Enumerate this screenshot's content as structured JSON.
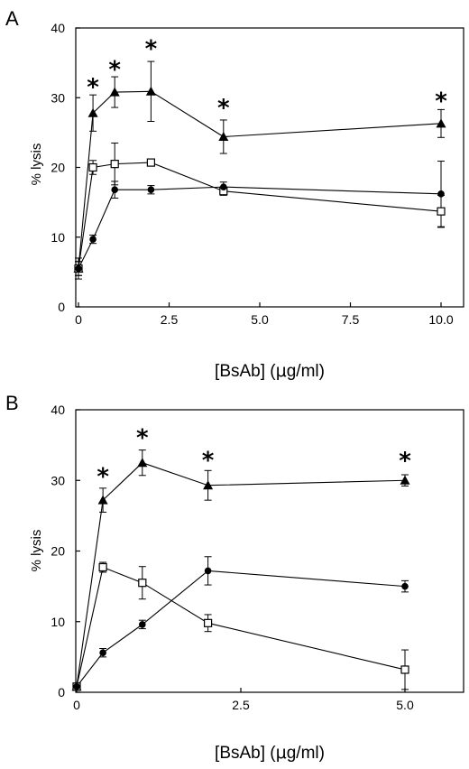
{
  "chart_data": [
    {
      "type": "line",
      "panel": "A",
      "ylabel": "% lysis",
      "xlabel_prefix": "[BsAb] (",
      "xlabel_mu": "μ",
      "xlabel_suffix": "g/ml)",
      "xlim": [
        0,
        11
      ],
      "ylim": [
        0,
        40
      ],
      "xticks": [
        0,
        2.5,
        5.0,
        7.5,
        10.0
      ],
      "xtick_labels": [
        "0",
        "2.5",
        "5.0",
        "7.5",
        "10.0"
      ],
      "yticks": [
        0,
        10,
        20,
        30,
        40
      ],
      "ytick_labels": [
        "0",
        "10",
        "20",
        "30",
        "40"
      ],
      "grid": false,
      "series": [
        {
          "marker": "filled-triangle",
          "points": [
            {
              "x": 0,
              "y": 5.5,
              "err": 1.0
            },
            {
              "x": 0.4,
              "y": 27.8,
              "err": 2.6
            },
            {
              "x": 1,
              "y": 30.8,
              "err": 2.2
            },
            {
              "x": 2,
              "y": 30.9,
              "err": 4.3
            },
            {
              "x": 4,
              "y": 24.4,
              "err": 2.4
            },
            {
              "x": 10,
              "y": 26.3,
              "err": 2.0
            }
          ]
        },
        {
          "marker": "open-square",
          "points": [
            {
              "x": 0,
              "y": 5.5,
              "err": 1.5
            },
            {
              "x": 0.4,
              "y": 20.0,
              "err": 1.0
            },
            {
              "x": 1,
              "y": 20.5,
              "err": 3.0
            },
            {
              "x": 2,
              "y": 20.7,
              "err": 0.3
            },
            {
              "x": 4,
              "y": 16.6,
              "err": 0.6
            },
            {
              "x": 10,
              "y": 13.7,
              "err": 2.3
            }
          ]
        },
        {
          "marker": "filled-circle",
          "points": [
            {
              "x": 0,
              "y": 5.5,
              "err": 1.0
            },
            {
              "x": 0.4,
              "y": 9.7,
              "err": 0.6
            },
            {
              "x": 1,
              "y": 16.8,
              "err": 1.2
            },
            {
              "x": 2,
              "y": 16.8,
              "err": 0.6
            },
            {
              "x": 4,
              "y": 17.2,
              "err": 0.7
            },
            {
              "x": 10,
              "y": 16.2,
              "err": 4.7
            }
          ]
        }
      ],
      "significance": [
        {
          "x": 0.4,
          "y": 32.0,
          "label": "*"
        },
        {
          "x": 1,
          "y": 34.5,
          "label": "*"
        },
        {
          "x": 2,
          "y": 37.5,
          "label": "*"
        },
        {
          "x": 4,
          "y": 29.0,
          "label": "*"
        },
        {
          "x": 10,
          "y": 30.0,
          "label": "*"
        }
      ]
    },
    {
      "type": "line",
      "panel": "B",
      "ylabel": "% lysis",
      "xlabel_prefix": "[BsAb] (",
      "xlabel_mu": "μ",
      "xlabel_suffix": "g/ml)",
      "xlim": [
        0,
        6
      ],
      "ylim": [
        0,
        40
      ],
      "xticks": [
        0,
        2.5,
        5.0
      ],
      "xtick_labels": [
        "0",
        "2.5",
        "5.0"
      ],
      "yticks": [
        0,
        10,
        20,
        30,
        40
      ],
      "ytick_labels": [
        "0",
        "10",
        "20",
        "30",
        "40"
      ],
      "grid": false,
      "series": [
        {
          "marker": "filled-triangle",
          "points": [
            {
              "x": 0,
              "y": 0.8,
              "err": 0.3
            },
            {
              "x": 0.4,
              "y": 27.2,
              "err": 1.7
            },
            {
              "x": 1,
              "y": 32.5,
              "err": 1.8
            },
            {
              "x": 2,
              "y": 29.3,
              "err": 2.1
            },
            {
              "x": 5,
              "y": 30.0,
              "err": 0.8
            }
          ]
        },
        {
          "marker": "open-square",
          "points": [
            {
              "x": 0,
              "y": 0.8,
              "err": 0.3
            },
            {
              "x": 0.4,
              "y": 17.7,
              "err": 0.7
            },
            {
              "x": 1,
              "y": 15.5,
              "err": 2.3
            },
            {
              "x": 2,
              "y": 9.8,
              "err": 1.2
            },
            {
              "x": 5,
              "y": 3.2,
              "err": 2.8
            }
          ]
        },
        {
          "marker": "filled-circle",
          "points": [
            {
              "x": 0,
              "y": 0.8,
              "err": 0.3
            },
            {
              "x": 0.4,
              "y": 5.6,
              "err": 0.6
            },
            {
              "x": 1,
              "y": 9.6,
              "err": 0.6
            },
            {
              "x": 2,
              "y": 17.2,
              "err": 2.0
            },
            {
              "x": 5,
              "y": 15.0,
              "err": 0.8
            }
          ]
        }
      ],
      "significance": [
        {
          "x": 0.4,
          "y": 31.0,
          "label": "*"
        },
        {
          "x": 1,
          "y": 36.5,
          "label": "*"
        },
        {
          "x": 2,
          "y": 33.3,
          "label": "*"
        },
        {
          "x": 5,
          "y": 33.2,
          "label": "*"
        }
      ]
    }
  ]
}
